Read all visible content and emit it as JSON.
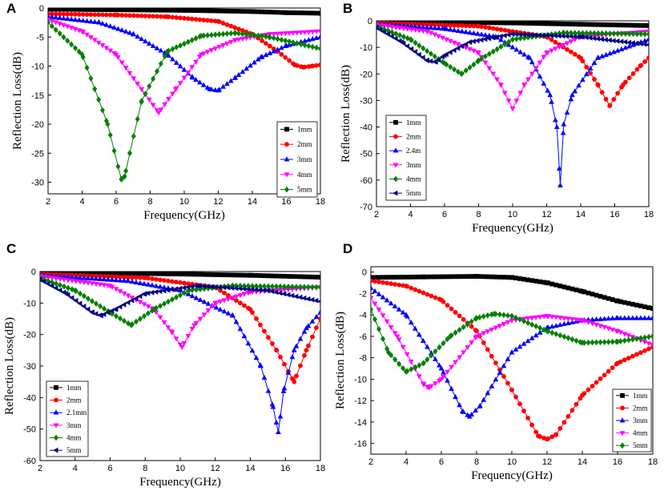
{
  "figure": {
    "panel_letters": [
      "A",
      "B",
      "C",
      "D"
    ]
  },
  "chart_data": [
    {
      "panel": "A",
      "type": "line",
      "xlabel": "Frequency(GHz)",
      "ylabel": "Reflection Loss(dB)",
      "xlim": [
        2,
        18
      ],
      "ylim": [
        -32,
        0
      ],
      "xticks": [
        2,
        4,
        6,
        8,
        10,
        12,
        14,
        16,
        18
      ],
      "yticks": [
        0,
        -5,
        -10,
        -15,
        -20,
        -25,
        -30
      ],
      "series": [
        {
          "name": "1mm",
          "color": "#000000",
          "marker": "square",
          "x": [
            2,
            6,
            10,
            14,
            16,
            18
          ],
          "y": [
            -0.2,
            -0.3,
            -0.4,
            -0.6,
            -0.8,
            -0.9
          ]
        },
        {
          "name": "2mm",
          "color": "#ff0000",
          "marker": "circle",
          "x": [
            2,
            6,
            9,
            12,
            14,
            15.5,
            16.5,
            17,
            17.5,
            18
          ],
          "y": [
            -1.0,
            -1.2,
            -1.5,
            -2.3,
            -4.5,
            -7.5,
            -9.8,
            -10.2,
            -10.0,
            -9.8
          ]
        },
        {
          "name": "3mm",
          "color": "#0000ff",
          "marker": "triangle-up",
          "x": [
            2,
            5,
            7,
            9,
            10.5,
            11.5,
            12,
            13,
            14.5,
            16,
            18
          ],
          "y": [
            -1.5,
            -2.5,
            -4.5,
            -8,
            -12,
            -14,
            -14.2,
            -12,
            -8.5,
            -6.5,
            -5
          ]
        },
        {
          "name": "4mm",
          "color": "#ff00ff",
          "marker": "triangle-down",
          "x": [
            2,
            4,
            6,
            7.5,
            8.5,
            9.5,
            11,
            13,
            15,
            18
          ],
          "y": [
            -2,
            -4,
            -8,
            -14,
            -18,
            -14,
            -8,
            -5.5,
            -4.5,
            -4
          ]
        },
        {
          "name": "5mm",
          "color": "#008000",
          "marker": "diamond",
          "x": [
            2,
            4,
            5.5,
            6.3,
            6.5,
            6.8,
            7.5,
            9,
            11,
            13,
            15,
            18
          ],
          "y": [
            -2.5,
            -8,
            -20,
            -29.5,
            -29,
            -25,
            -16,
            -7.5,
            -4.8,
            -4.3,
            -5,
            -7
          ]
        }
      ]
    },
    {
      "panel": "B",
      "type": "line",
      "xlabel": "Frequency(GHz)",
      "ylabel": "Reflection Loss(dB)",
      "xlim": [
        2,
        18
      ],
      "ylim": [
        -70,
        0
      ],
      "xticks": [
        2,
        4,
        6,
        8,
        10,
        12,
        14,
        16,
        18
      ],
      "yticks": [
        0,
        -10,
        -20,
        -30,
        -40,
        -50,
        -60,
        -70
      ],
      "series": [
        {
          "name": "1mm",
          "color": "#000000",
          "marker": "square",
          "x": [
            2,
            6,
            10,
            14,
            18
          ],
          "y": [
            -0.3,
            -0.5,
            -0.8,
            -1.3,
            -1.8
          ]
        },
        {
          "name": "2mm",
          "color": "#ff0000",
          "marker": "circle",
          "x": [
            2,
            8,
            12,
            14,
            15,
            15.7,
            16.5,
            17.5,
            18
          ],
          "y": [
            -0.8,
            -2,
            -6,
            -14,
            -24,
            -32,
            -24,
            -17,
            -14
          ]
        },
        {
          "name": "2.4m",
          "color": "#0000ff",
          "marker": "triangle-up",
          "x": [
            2,
            6,
            9,
            11,
            12.2,
            12.6,
            12.8,
            13,
            13.5,
            15,
            18
          ],
          "y": [
            -1.2,
            -3,
            -6,
            -14,
            -28,
            -40,
            -62,
            -39,
            -28,
            -14,
            -7
          ]
        },
        {
          "name": "3mm",
          "color": "#ff00ff",
          "marker": "triangle-down",
          "x": [
            2,
            5,
            8,
            9.3,
            10,
            10.7,
            12,
            14,
            18
          ],
          "y": [
            -1.5,
            -4,
            -12,
            -24,
            -33,
            -24,
            -12,
            -6,
            -4
          ]
        },
        {
          "name": "4mm",
          "color": "#008000",
          "marker": "diamond",
          "x": [
            2,
            4,
            6,
            7,
            8,
            10,
            13,
            18
          ],
          "y": [
            -2,
            -7,
            -16,
            -20,
            -15,
            -7,
            -4.5,
            -5
          ]
        },
        {
          "name": "5mm",
          "color": "#000080",
          "marker": "triangle-left",
          "x": [
            2,
            3.5,
            5,
            5.5,
            6,
            7.5,
            10,
            14,
            18
          ],
          "y": [
            -2.5,
            -8,
            -15,
            -15.5,
            -13,
            -8,
            -5,
            -6,
            -9
          ]
        }
      ]
    },
    {
      "panel": "C",
      "type": "line",
      "xlabel": "Frequency(GHz)",
      "ylabel": "Reflection Loss(dB)",
      "xlim": [
        2,
        18
      ],
      "ylim": [
        -60,
        0
      ],
      "xticks": [
        2,
        4,
        6,
        8,
        10,
        12,
        14,
        16,
        18
      ],
      "yticks": [
        0,
        -10,
        -20,
        -30,
        -40,
        -50,
        -60
      ],
      "series": [
        {
          "name": "1mm",
          "color": "#000000",
          "marker": "square",
          "x": [
            2,
            6,
            10,
            14,
            18
          ],
          "y": [
            -0.3,
            -0.5,
            -0.8,
            -1.2,
            -1.8
          ]
        },
        {
          "name": "2mm",
          "color": "#ff0000",
          "marker": "circle",
          "x": [
            2,
            8,
            12,
            14,
            15.5,
            16.5,
            17.2,
            18
          ],
          "y": [
            -0.8,
            -2,
            -5,
            -12,
            -25,
            -35,
            -25,
            -15
          ]
        },
        {
          "name": "2.1mm",
          "color": "#0000ff",
          "marker": "triangle-up",
          "x": [
            2,
            7,
            10,
            13,
            14.6,
            15.3,
            15.6,
            15.9,
            16.5,
            17.2,
            18
          ],
          "y": [
            -1.2,
            -3,
            -6,
            -14,
            -30,
            -43,
            -51,
            -38,
            -25,
            -18,
            -13
          ]
        },
        {
          "name": "3mm",
          "color": "#ff00ff",
          "marker": "triangle-down",
          "x": [
            2,
            6,
            8.5,
            9.5,
            10.1,
            10.8,
            12,
            14,
            18
          ],
          "y": [
            -1.5,
            -4.5,
            -12,
            -19,
            -24,
            -17,
            -10,
            -6.5,
            -5
          ]
        },
        {
          "name": "4mm",
          "color": "#008000",
          "marker": "diamond",
          "x": [
            2,
            4,
            6,
            7.2,
            8.5,
            10.5,
            13,
            18
          ],
          "y": [
            -2,
            -6,
            -13,
            -17,
            -12,
            -6,
            -4.5,
            -5
          ]
        },
        {
          "name": "5mm",
          "color": "#000080",
          "marker": "triangle-left",
          "x": [
            2,
            3.5,
            5,
            5.5,
            6.3,
            8,
            11,
            15,
            18
          ],
          "y": [
            -2.5,
            -7,
            -13,
            -14,
            -12,
            -7,
            -4.5,
            -6,
            -9.5
          ]
        }
      ]
    },
    {
      "panel": "D",
      "type": "line",
      "xlabel": "Frequency(GHz)",
      "ylabel": "Reflection Loss(dB)",
      "xlim": [
        2,
        18
      ],
      "ylim": [
        -17,
        0.5
      ],
      "xticks": [
        2,
        4,
        6,
        8,
        10,
        12,
        14,
        16,
        18
      ],
      "yticks": [
        0,
        -2,
        -4,
        -6,
        -8,
        -10,
        -12,
        -14,
        -16
      ],
      "series": [
        {
          "name": "1mm",
          "color": "#000000",
          "marker": "square",
          "x": [
            2,
            5,
            8,
            10,
            12,
            14,
            16,
            18
          ],
          "y": [
            -0.5,
            -0.45,
            -0.4,
            -0.5,
            -1.0,
            -1.8,
            -2.7,
            -3.4
          ]
        },
        {
          "name": "2mm",
          "color": "#ff0000",
          "marker": "circle",
          "x": [
            2,
            4,
            6,
            8,
            10,
            11.5,
            12,
            12.5,
            14,
            16,
            18
          ],
          "y": [
            -0.8,
            -1.3,
            -2.6,
            -5.5,
            -11,
            -15.3,
            -15.6,
            -15.2,
            -11.5,
            -8.5,
            -7
          ]
        },
        {
          "name": "3mm",
          "color": "#0000ff",
          "marker": "triangle-up",
          "x": [
            2,
            4,
            6,
            7.2,
            7.6,
            8.2,
            10,
            12,
            14,
            16,
            18
          ],
          "y": [
            -1.5,
            -4,
            -9,
            -13,
            -13.5,
            -12.5,
            -7.5,
            -5.2,
            -4.5,
            -4.3,
            -4.3
          ]
        },
        {
          "name": "4mm",
          "color": "#ff00ff",
          "marker": "triangle-down",
          "x": [
            2,
            3.5,
            5,
            5.3,
            6,
            8,
            10,
            12,
            14,
            16,
            18
          ],
          "y": [
            -2.4,
            -6,
            -10.5,
            -10.8,
            -10,
            -6,
            -4.5,
            -4.1,
            -4.5,
            -5.5,
            -6.8
          ]
        },
        {
          "name": "5mm",
          "color": "#008000",
          "marker": "diamond",
          "x": [
            2,
            3,
            4,
            5,
            6.5,
            8,
            9,
            10,
            12,
            14,
            16,
            18
          ],
          "y": [
            -3.5,
            -7.5,
            -9.3,
            -8.5,
            -6,
            -4.3,
            -3.9,
            -4.1,
            -5.5,
            -6.6,
            -6.5,
            -6
          ]
        }
      ]
    }
  ]
}
